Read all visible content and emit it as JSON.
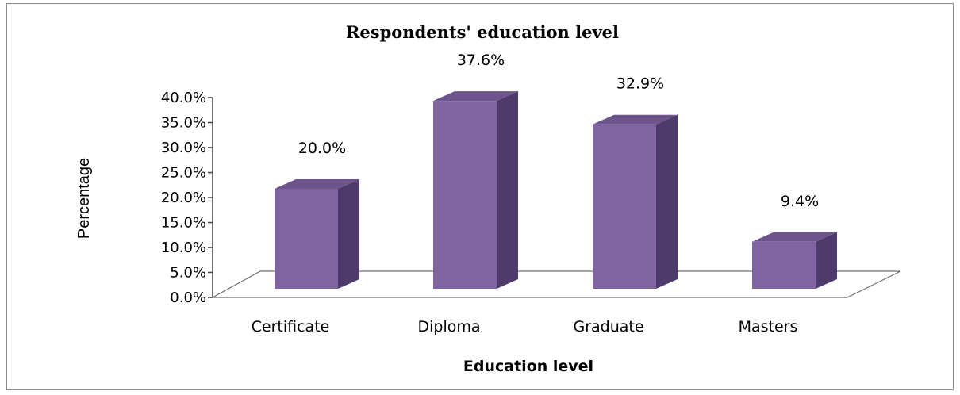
{
  "chart_data": {
    "type": "bar",
    "title": "Respondents' education level",
    "xlabel": "Education level",
    "ylabel": "Percentage",
    "categories": [
      "Certificate",
      "Diploma",
      "Graduate",
      "Masters"
    ],
    "values": [
      20.0,
      37.6,
      32.9,
      9.4
    ],
    "data_labels": [
      "20.0%",
      "37.6%",
      "32.9%",
      "9.4%"
    ],
    "ylim": [
      0,
      40
    ],
    "yticks": [
      "0.0%",
      "5.0%",
      "10.0%",
      "15.0%",
      "20.0%",
      "25.0%",
      "30.0%",
      "35.0%",
      "40.0%"
    ],
    "grid": false,
    "legend": "none",
    "style": "3d",
    "colors": {
      "bar_front": "#8064a2",
      "bar_side": "#4e3b6b",
      "bar_top": "#6d548c",
      "axis": "#444444"
    }
  }
}
